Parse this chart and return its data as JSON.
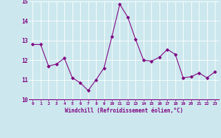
{
  "x": [
    0,
    1,
    2,
    3,
    4,
    5,
    6,
    7,
    8,
    9,
    10,
    11,
    12,
    13,
    14,
    15,
    16,
    17,
    18,
    19,
    20,
    21,
    22,
    23
  ],
  "y": [
    12.8,
    12.8,
    11.7,
    11.8,
    12.1,
    11.1,
    10.85,
    10.45,
    11.0,
    11.6,
    13.2,
    14.85,
    14.2,
    13.05,
    12.0,
    11.95,
    12.15,
    12.55,
    12.3,
    11.1,
    11.15,
    11.35,
    11.1,
    11.4
  ],
  "line_color": "#800080",
  "marker_color": "#800080",
  "bg_color": "#cce8ee",
  "grid_color": "#ffffff",
  "xlabel": "Windchill (Refroidissement éolien,°C)",
  "xlabel_color": "#800080",
  "tick_color": "#800080",
  "ylim": [
    10,
    15
  ],
  "yticks": [
    10,
    11,
    12,
    13,
    14,
    15
  ],
  "xticks": [
    0,
    1,
    2,
    3,
    4,
    5,
    6,
    7,
    8,
    9,
    10,
    11,
    12,
    13,
    14,
    15,
    16,
    17,
    18,
    19,
    20,
    21,
    22,
    23
  ],
  "line_width": 0.8,
  "marker_size": 2.5
}
